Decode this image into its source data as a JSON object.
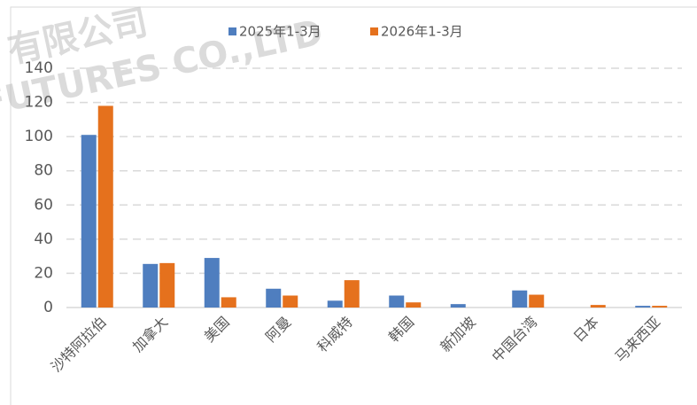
{
  "chart_data": {
    "type": "bar",
    "watermark": [
      "有限公司",
      "FUTURES CO.,LTD"
    ],
    "categories": [
      "沙特阿拉伯",
      "加拿大",
      "美国",
      "阿曼",
      "科威特",
      "韩国",
      "新加坡",
      "中国台湾",
      "日本",
      "马来西亚"
    ],
    "series": [
      {
        "name": "2025年1-3月",
        "color": "#4f7ebf",
        "values": [
          101,
          25.5,
          29,
          11,
          4,
          7,
          2,
          10,
          0,
          1
        ]
      },
      {
        "name": "2026年1-3月",
        "color": "#e5711d",
        "values": [
          118,
          26,
          6,
          7,
          16,
          3,
          0,
          7.5,
          1.5,
          1
        ]
      }
    ],
    "ylim": [
      0,
      140
    ],
    "yticks": [
      0,
      20,
      40,
      60,
      80,
      100,
      120,
      140
    ],
    "grid": true,
    "legend": "top"
  }
}
